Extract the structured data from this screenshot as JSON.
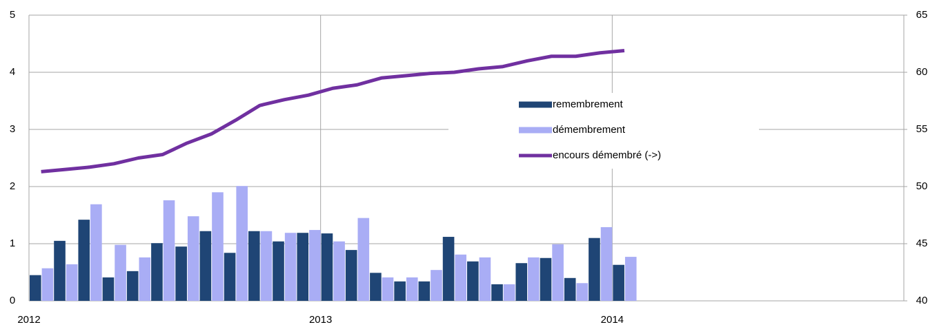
{
  "chart_data": {
    "type": "bar-line",
    "categories": [
      "2012",
      null,
      null,
      null,
      null,
      null,
      null,
      null,
      null,
      null,
      null,
      null,
      "2013",
      null,
      null,
      null,
      null,
      null,
      null,
      null,
      null,
      null,
      null,
      null,
      "2014",
      null,
      null,
      null,
      null,
      null,
      null,
      null,
      null,
      null,
      null,
      null
    ],
    "series": [
      {
        "name": "remembrement",
        "type": "bar",
        "color": "#1f4575",
        "values": [
          0.45,
          1.05,
          1.42,
          0.41,
          0.52,
          1.01,
          0.95,
          1.22,
          0.84,
          1.22,
          1.04,
          1.19,
          1.18,
          0.89,
          0.49,
          0.34,
          0.34,
          1.12,
          0.69,
          0.29,
          0.66,
          0.75,
          0.4,
          1.1,
          0.63,
          null,
          null,
          null,
          null,
          null,
          null,
          null,
          null,
          null,
          null,
          null
        ]
      },
      {
        "name": "démembrement",
        "type": "bar",
        "color": "#a9adf5",
        "values": [
          0.57,
          0.64,
          1.69,
          0.98,
          0.76,
          1.76,
          1.48,
          1.9,
          2.01,
          1.22,
          1.19,
          1.24,
          1.04,
          1.45,
          0.41,
          0.41,
          0.54,
          0.81,
          0.76,
          0.29,
          0.76,
          0.99,
          0.31,
          1.29,
          0.77,
          null,
          null,
          null,
          null,
          null,
          null,
          null,
          null,
          null,
          null,
          null
        ]
      },
      {
        "name": "encours démembré (->)",
        "type": "line",
        "axis": "y2",
        "color": "#7030a0",
        "values": [
          51.3,
          51.5,
          51.7,
          52.0,
          52.5,
          52.8,
          53.8,
          54.6,
          55.8,
          57.1,
          57.6,
          58.0,
          58.6,
          58.9,
          59.5,
          59.7,
          59.9,
          60.0,
          60.3,
          60.5,
          61.0,
          61.4,
          61.4,
          61.7,
          61.9,
          null,
          null,
          null,
          null,
          null,
          null,
          null,
          null,
          null,
          null,
          null
        ]
      }
    ],
    "ylim": [
      0,
      5
    ],
    "yticks": [
      0,
      1,
      2,
      3,
      4,
      5
    ],
    "y2lim": [
      40,
      65
    ],
    "y2ticks": [
      40,
      45,
      50,
      55,
      60,
      65
    ],
    "grid": true,
    "legend": "center"
  }
}
